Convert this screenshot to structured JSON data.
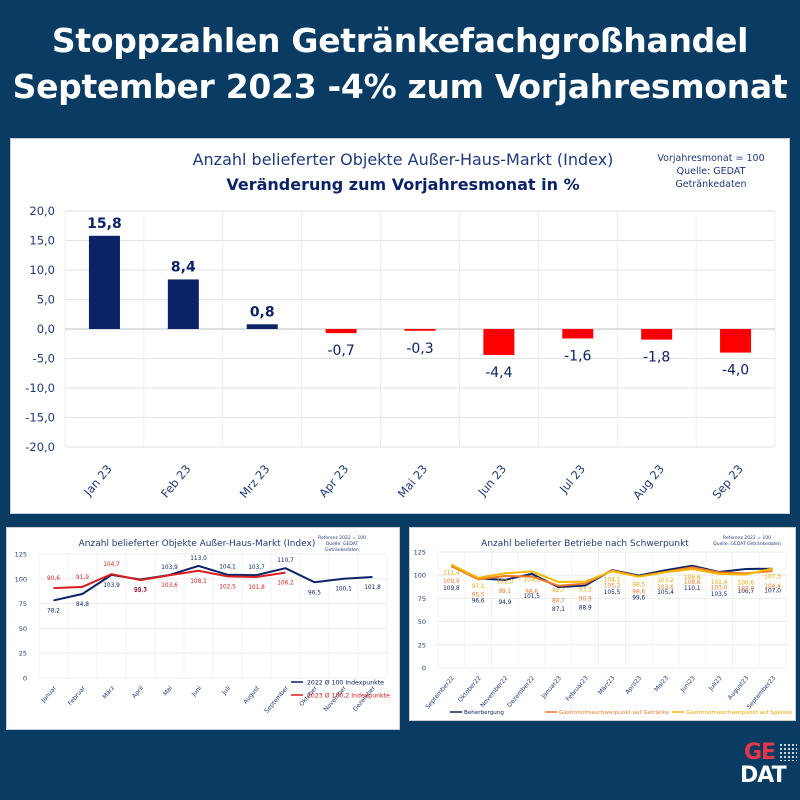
{
  "headline": {
    "line1": "Stoppzahlen Getränkefachgroßhandel",
    "line2": "September 2023 -4% zum Vorjahresmonat"
  },
  "logo": {
    "line1": "GE",
    "line2": "DAT"
  },
  "colors": {
    "background": "#0a3b62",
    "navy": "#0b2366",
    "red": "#ff0000",
    "red_line": "#d91e1e",
    "orange": "#f07a2a",
    "yellow": "#f5b800",
    "text_blue": "#1f3a78"
  },
  "chart_data": [
    {
      "type": "bar",
      "title": "Anzahl belieferter Objekte Außer-Haus-Markt (Index)",
      "subtitle": "Veränderung zum Vorjahresmonat in %",
      "note": [
        "Vorjahresmonat = 100",
        "Quelle: GEDAT",
        "Getränkedaten"
      ],
      "categories": [
        "Jan 23",
        "Feb 23",
        "Mrz 23",
        "Apr 23",
        "Mai 23",
        "Jun 23",
        "Jul 23",
        "Aug 23",
        "Sep 23"
      ],
      "values": [
        15.8,
        8.4,
        0.8,
        -0.7,
        -0.3,
        -4.4,
        -1.6,
        -1.8,
        -4.0
      ],
      "value_labels": [
        "15,8",
        "8,4",
        "0,8",
        "-0,7",
        "-0,3",
        "-4,4",
        "-1,6",
        "-1,8",
        "-4,0"
      ],
      "ylim": [
        -20,
        20
      ],
      "yticks": [
        20,
        15,
        10,
        5,
        0,
        -5,
        -10,
        -15,
        -20
      ],
      "ytick_labels": [
        "20,0",
        "15,0",
        "10,0",
        "5,0",
        "0,0",
        "-5,0",
        "-10,0",
        "-15,0",
        "-20,0"
      ],
      "positive_color": "#0b2366",
      "negative_color": "#ff0000",
      "grid": true,
      "xlabel": "",
      "ylabel": ""
    },
    {
      "type": "line",
      "title": "Anzahl belieferter Objekte Außer-Haus-Markt (Index)",
      "note": [
        "Referenz 2022 = 100",
        "Quelle: GEDAT",
        "Getränkedaten"
      ],
      "categories": [
        "Januar",
        "Februar",
        "März",
        "April",
        "Mai",
        "Juni",
        "Juli",
        "August",
        "September",
        "Oktober",
        "November",
        "Dezember"
      ],
      "series": [
        {
          "name": "2022  Ø 100 Indexpunkte",
          "color": "#0b2366",
          "values": [
            78.2,
            84.8,
            103.9,
            99.3,
            103.9,
            113.0,
            104.1,
            103.7,
            110.7,
            96.5,
            100.1,
            101.8
          ],
          "labels": [
            "78,2",
            "84,8",
            "103,9",
            "99,3",
            "103,9",
            "113,0",
            "104,1",
            "103,7",
            "110,7",
            "96,5",
            "100,1",
            "101,8"
          ]
        },
        {
          "name": "2023  Ø 100,2 Indexpunkte",
          "color": "#d91e1e",
          "values": [
            90.6,
            91.9,
            104.7,
            98.7,
            103.6,
            108.1,
            102.5,
            101.8,
            106.2
          ],
          "labels": [
            "90,6",
            "91,9",
            "104,7",
            "98,7",
            "103,6",
            "108,1",
            "102,5",
            "101,8",
            "106,2"
          ]
        }
      ],
      "ylim": [
        0,
        125
      ],
      "yticks": [
        0,
        25,
        50,
        75,
        100,
        125
      ],
      "legend": "bottom-right",
      "grid": true
    },
    {
      "type": "line",
      "title": "Anzahl belieferter Betriebe nach Schwerpunkt",
      "note": [
        "Referenz 2022 = 100",
        "Quelle: GEDAT Getränkedaten"
      ],
      "categories": [
        "September22",
        "Oktober22",
        "November22",
        "Dezember22",
        "Januar23",
        "Februar23",
        "März23",
        "April23",
        "Mai23",
        "Juni23",
        "Juli23",
        "August23",
        "September23"
      ],
      "series": [
        {
          "name": "Beherbergung",
          "color": "#0b2366",
          "values": [
            109.8,
            96.6,
            94.9,
            101.5,
            87.1,
            88.9,
            105.5,
            99.6,
            105.4,
            110.1,
            103.5,
            106.7,
            107.0
          ],
          "labels": [
            "109,8",
            "96,6",
            "94,9",
            "101,5",
            "87,1",
            "88,9",
            "105,5",
            "99,6",
            "105,4",
            "110,1",
            "103,5",
            "106,7",
            "107,0"
          ]
        },
        {
          "name": "Gastronomieschwerpunkt auf Getränke",
          "color": "#f07a2a",
          "values": [
            109.9,
            95.5,
            99.1,
            98.6,
            88.7,
            90.9,
            105.2,
            98.6,
            103.6,
            108.6,
            103.0,
            102.0,
            104.4
          ],
          "labels": [
            "109,9",
            "95,5",
            "99,1",
            "98,6",
            "88,7",
            "90,9",
            "105,2",
            "98,6",
            "103,6",
            "108,6",
            "103,0",
            "102,0",
            "104,4"
          ]
        },
        {
          "name": "Gastronomieschwerpunkt auf Speisen",
          "color": "#f5b800",
          "values": [
            111.4,
            97.1,
            102.0,
            104.1,
            92.7,
            93.2,
            104.2,
            98.5,
            103.2,
            106.6,
            101.4,
            100.6,
            107.3
          ],
          "labels": [
            "111,4",
            "97,1",
            "102,0",
            "104,1",
            "92,7",
            "93,2",
            "104,2",
            "98,5",
            "103,2",
            "106,6",
            "101,4",
            "100,6",
            "107,3"
          ]
        }
      ],
      "ylim": [
        0,
        125
      ],
      "yticks": [
        0,
        25,
        50,
        75,
        100,
        125
      ],
      "legend": "bottom",
      "grid": true
    }
  ]
}
